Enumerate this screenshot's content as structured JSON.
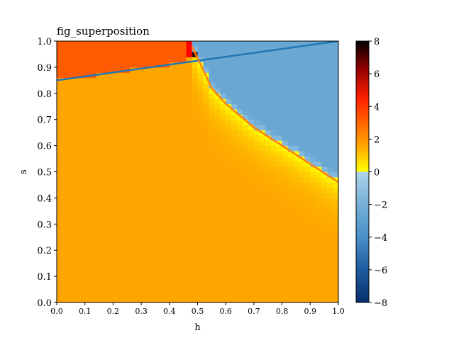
{
  "chart_data": {
    "type": "heatmap",
    "title": "fig_superposition",
    "xlabel": "h",
    "ylabel": "s",
    "xlim": [
      0,
      1
    ],
    "ylim": [
      0,
      1
    ],
    "x_ticks": [
      "0.0",
      "0.1",
      "0.2",
      "0.3",
      "0.4",
      "0.5",
      "0.6",
      "0.7",
      "0.8",
      "0.9",
      "1.0"
    ],
    "y_ticks": [
      "0.0",
      "0.1",
      "0.2",
      "0.3",
      "0.4",
      "0.5",
      "0.6",
      "0.7",
      "0.8",
      "0.9",
      "1.0"
    ],
    "grid": false,
    "colorbar": {
      "range": [
        -8,
        8
      ],
      "ticks": [
        "8",
        "6",
        "4",
        "2",
        "0",
        "−2",
        "−4",
        "−6",
        "−8"
      ],
      "positive_colors": [
        "#ffff00",
        "#ffa500",
        "#ff0000",
        "#8b0000",
        "#000000"
      ],
      "negative_colors": [
        "#b0d3ea",
        "#78b2d8",
        "#4a8fc8",
        "#1e5a9e",
        "#08306b"
      ]
    },
    "overlay_lines": [
      {
        "color": "#1f77b4",
        "points": [
          [
            0.0,
            0.85
          ],
          [
            1.0,
            1.0
          ]
        ]
      },
      {
        "color": "#ff7f0e",
        "points": [
          [
            0.48,
            0.98
          ],
          [
            0.55,
            0.82
          ],
          [
            0.6,
            0.76
          ],
          [
            0.7,
            0.67
          ],
          [
            0.8,
            0.6
          ],
          [
            0.9,
            0.53
          ],
          [
            1.0,
            0.46
          ]
        ]
      }
    ]
  }
}
